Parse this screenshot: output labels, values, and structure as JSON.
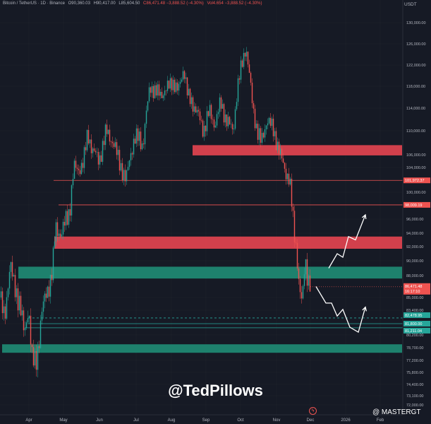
{
  "header": {
    "pair": "Bitcoin / TetherUS · 1D · Binance",
    "open": "O90,360.03",
    "high": "H90,417.00",
    "low": "L85,604.50",
    "close": "C86,471.48 −3,888.52 (−4.30%)",
    "volume": "Vol4.654  −3,888.52 (−4.30%)"
  },
  "currency": "USDT",
  "watermark": "@TedPillows",
  "signature": "@ MASTERGT",
  "colors": {
    "background": "#161a25",
    "up": "#26a69a",
    "down": "#ef5350",
    "resistance": "#e2434f",
    "support": "#1f8a73",
    "arrow": "#ffffff",
    "axis_text": "#b2b5be"
  },
  "chart_data": {
    "type": "candlestick",
    "title": "Bitcoin / TetherUS · 1D · Binance",
    "x_ticks": [
      "Apr",
      "May",
      "Jun",
      "Jul",
      "Aug",
      "Sep",
      "Oct",
      "Nov",
      "Dec",
      "2026",
      "Feb"
    ],
    "y_ticks": [
      "130,000.00",
      "126,000.00",
      "122,000.00",
      "118,000.00",
      "114,000.00",
      "110,000.00",
      "106,000.00",
      "104,000.00",
      "102,000.00",
      "100,000.00",
      "98,000.00",
      "96,000.00",
      "94,000.00",
      "92,000.00",
      "90,000.00",
      "88,000.00",
      "85,000.00",
      "83,400.00",
      "81,800.00",
      "80,200.00",
      "78,700.00",
      "77,200.00",
      "75,800.00",
      "74,400.00",
      "73,100.00",
      "72,000.00"
    ],
    "price_path": [
      [
        0,
        85000
      ],
      [
        6,
        82000
      ],
      [
        14,
        90000
      ],
      [
        20,
        86000
      ],
      [
        28,
        84500
      ],
      [
        34,
        80000
      ],
      [
        40,
        84000
      ],
      [
        45,
        77500
      ],
      [
        50,
        76500
      ],
      [
        54,
        79000
      ],
      [
        58,
        83000
      ],
      [
        64,
        85000
      ],
      [
        70,
        87000
      ],
      [
        74,
        89000
      ],
      [
        78,
        94500
      ],
      [
        86,
        94000
      ],
      [
        92,
        95500
      ],
      [
        98,
        97000
      ],
      [
        104,
        104000
      ],
      [
        110,
        103500
      ],
      [
        118,
        105000
      ],
      [
        124,
        109500
      ],
      [
        130,
        107000
      ],
      [
        140,
        105000
      ],
      [
        150,
        110000
      ],
      [
        160,
        108000
      ],
      [
        170,
        104500
      ],
      [
        178,
        101800
      ],
      [
        184,
        106000
      ],
      [
        190,
        108500
      ],
      [
        196,
        109000
      ],
      [
        202,
        107500
      ],
      [
        206,
        112000
      ],
      [
        212,
        118000
      ],
      [
        220,
        117000
      ],
      [
        228,
        116500
      ],
      [
        236,
        117500
      ],
      [
        244,
        119000
      ],
      [
        252,
        117000
      ],
      [
        260,
        121500
      ],
      [
        266,
        116000
      ],
      [
        272,
        115000
      ],
      [
        280,
        113000
      ],
      [
        288,
        110000
      ],
      [
        296,
        113500
      ],
      [
        304,
        111000
      ],
      [
        312,
        115000
      ],
      [
        320,
        112000
      ],
      [
        330,
        110000
      ],
      [
        336,
        117500
      ],
      [
        342,
        122000
      ],
      [
        348,
        125500
      ],
      [
        354,
        119000
      ],
      [
        358,
        114000
      ],
      [
        364,
        110000
      ],
      [
        370,
        108000
      ],
      [
        378,
        112000
      ],
      [
        386,
        110500
      ],
      [
        392,
        108000
      ],
      [
        398,
        105500
      ],
      [
        404,
        103500
      ],
      [
        410,
        102000
      ],
      [
        416,
        94500
      ],
      [
        420,
        91500
      ],
      [
        424,
        86000
      ],
      [
        428,
        84000
      ],
      [
        432,
        90500
      ],
      [
        436,
        87500
      ],
      [
        440,
        86471
      ]
    ],
    "levels": [
      {
        "price": 101972.37,
        "label": "101,972.37",
        "style": "solid",
        "color": "#ef5350"
      },
      {
        "price": 98009.19,
        "label": "98,009.19",
        "style": "solid",
        "color": "#ef5350"
      },
      {
        "price": 82478.95,
        "label": "82,478.95",
        "style": "dashed",
        "color": "#26a69a"
      },
      {
        "price": 81800.0,
        "label": "81,800.00",
        "style": "solid",
        "color": "#26a69a"
      },
      {
        "price": 81211.04,
        "label": "81,211.04",
        "style": "solid",
        "color": "#26a69a"
      }
    ],
    "current": {
      "price": 86471.48,
      "label": "86,471.48",
      "timer": "16:17:10"
    },
    "zones": [
      {
        "type": "resistance",
        "from": 105900,
        "to": 107600
      },
      {
        "type": "resistance",
        "from": 91700,
        "to": 93500
      },
      {
        "type": "support",
        "from": 87600,
        "to": 89200
      },
      {
        "type": "support",
        "from": 78100,
        "to": 79100
      }
    ],
    "arrows": [
      {
        "direction": "up",
        "points": [
          [
            466,
            89000
          ],
          [
            478,
            91000
          ],
          [
            486,
            90500
          ],
          [
            494,
            93500
          ],
          [
            504,
            93000
          ],
          [
            518,
            96600
          ]
        ]
      },
      {
        "direction": "down",
        "points": [
          [
            448,
            86500
          ],
          [
            462,
            84300
          ],
          [
            470,
            84300
          ],
          [
            478,
            82700
          ],
          [
            486,
            83500
          ],
          [
            496,
            81300
          ],
          [
            508,
            80600
          ],
          [
            518,
            83800
          ]
        ]
      }
    ]
  }
}
